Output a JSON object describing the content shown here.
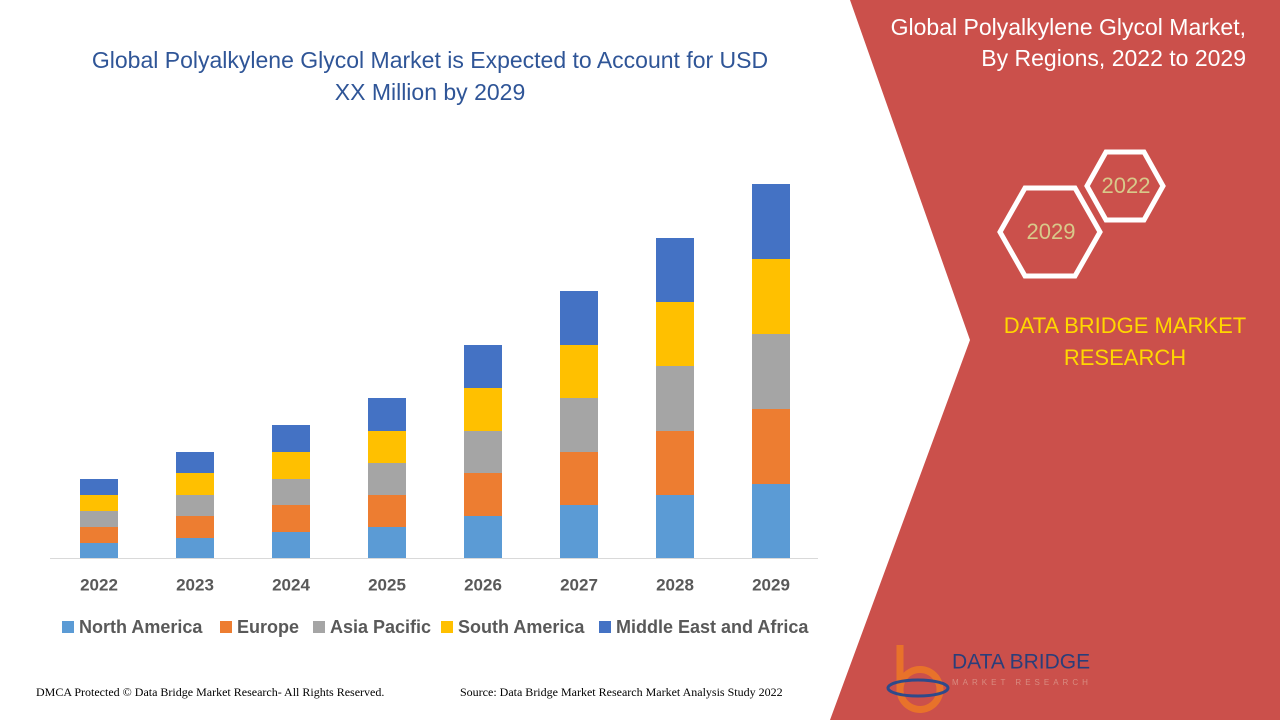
{
  "chart_data": {
    "type": "bar",
    "stacked": true,
    "title": "Global Polyalkylene Glycol Market is Expected to Account for USD XX Million by 2029",
    "categories": [
      "2022",
      "2023",
      "2024",
      "2025",
      "2026",
      "2027",
      "2028",
      "2029"
    ],
    "series": [
      {
        "name": "North America",
        "color": "#5b9bd5",
        "values": [
          15,
          20,
          26,
          31,
          42,
          53,
          63,
          74
        ]
      },
      {
        "name": "Europe",
        "color": "#ed7d31",
        "values": [
          16,
          22,
          27,
          32,
          43,
          53,
          64,
          75
        ]
      },
      {
        "name": "Asia Pacific",
        "color": "#a5a5a5",
        "values": [
          16,
          21,
          26,
          32,
          42,
          54,
          65,
          75
        ]
      },
      {
        "name": "South America",
        "color": "#ffc000",
        "values": [
          16,
          22,
          27,
          32,
          43,
          53,
          64,
          75
        ]
      },
      {
        "name": "Middle East and Africa",
        "color": "#4472c4",
        "values": [
          16,
          21,
          27,
          33,
          43,
          54,
          64,
          75
        ]
      }
    ]
  },
  "panel": {
    "title": "Global Polyalkylene Glycol Market, By Regions, 2022 to 2029",
    "hex_years": [
      "2022",
      "2029"
    ],
    "brand": "DATA BRIDGE MARKET RESEARCH"
  },
  "logo": {
    "name": "DATA BRIDGE",
    "tagline": "MARKET RESEARCH"
  },
  "footer": {
    "left": "DMCA Protected © Data Bridge Market Research- All Rights Reserved.",
    "right": "Source: Data Bridge Market Research Market Analysis Study 2022"
  }
}
